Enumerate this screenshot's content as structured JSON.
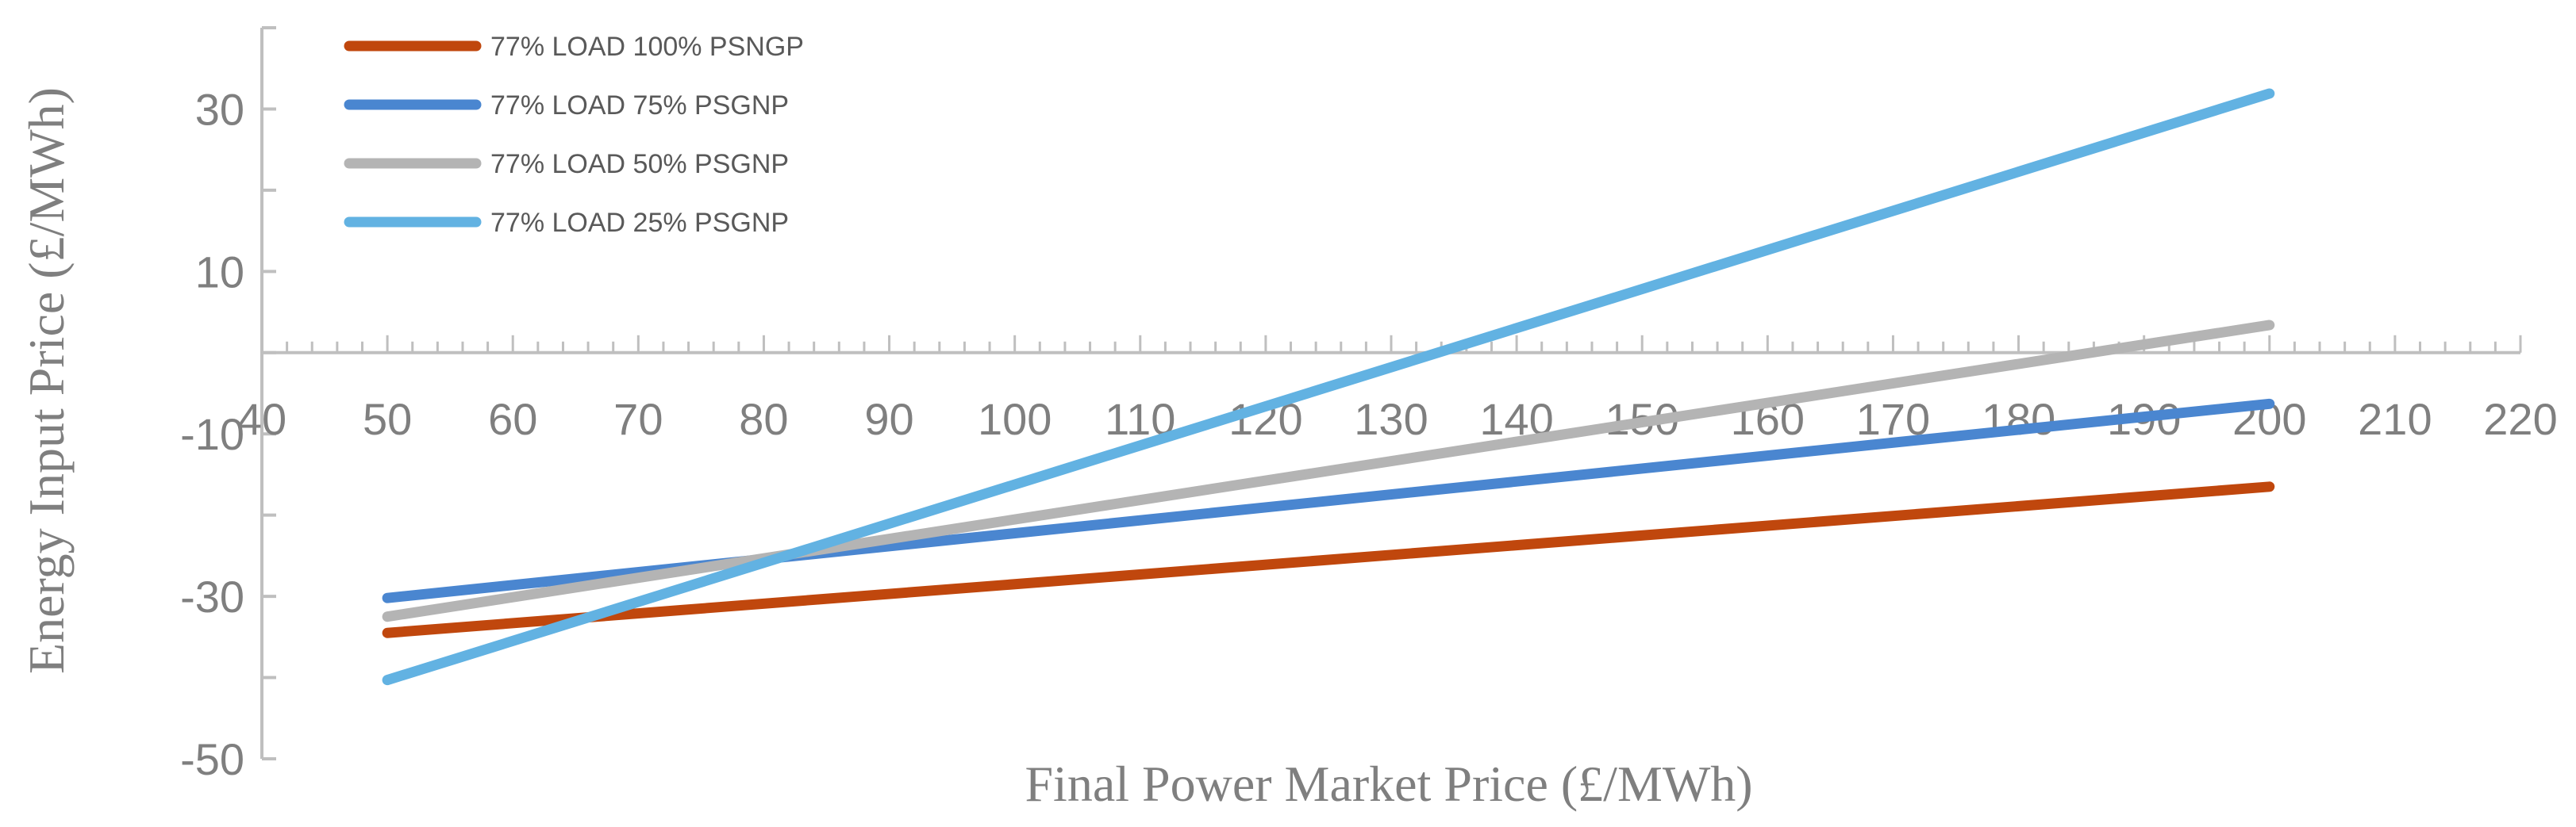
{
  "chart_data": {
    "type": "line",
    "title": "",
    "xlabel": "Final Power Market Price (£/MWh)",
    "ylabel": "Energy Input Price (£/MWh)",
    "xlim": [
      40,
      220
    ],
    "ylim": [
      -50,
      40
    ],
    "x_ticks": [
      40,
      50,
      60,
      70,
      80,
      90,
      100,
      110,
      120,
      130,
      140,
      150,
      160,
      170,
      180,
      190,
      200,
      210,
      220
    ],
    "y_ticks": [
      -50,
      -30,
      -10,
      10,
      30
    ],
    "grid": false,
    "legend_position": "top-left",
    "series": [
      {
        "name": "77% LOAD 100% PSNGP",
        "color": "#c0470d",
        "x": [
          50,
          200
        ],
        "y": [
          -34.5,
          -16.5
        ]
      },
      {
        "name": "77% LOAD 75% PSGNP",
        "color": "#4a86d0",
        "x": [
          50,
          200
        ],
        "y": [
          -30.2,
          -6.3
        ]
      },
      {
        "name": "77% LOAD 50% PSGNP",
        "color": "#b4b4b4",
        "x": [
          50,
          200
        ],
        "y": [
          -32.5,
          3.4
        ]
      },
      {
        "name": "77% LOAD 25% PSGNP",
        "color": "#62b2e2",
        "x": [
          50,
          200
        ],
        "y": [
          -40.3,
          31.9
        ]
      }
    ]
  }
}
